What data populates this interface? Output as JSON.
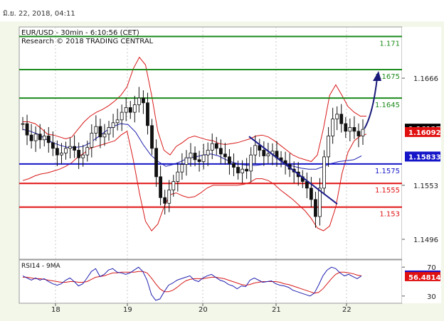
{
  "header": {
    "timestamp": "มิ.ย. 22, 2018, 04:11"
  },
  "chart_data": {
    "type": "line",
    "title": "EUR/USD - 30min - 6:10:56 (CET)",
    "subtitle": "Research © 2018 TRADING CENTRAL",
    "x_ticks": [
      "18",
      "19",
      "20",
      "21",
      "22"
    ],
    "ylim": [
      1.1475,
      1.172
    ],
    "y_ticks": [
      1.1666,
      1.1553,
      1.1496
    ],
    "levels": [
      {
        "label": "1.171",
        "value": 1.171,
        "color": "#1a8a1a"
      },
      {
        "label": "1.1675",
        "value": 1.1675,
        "color": "#1a8a1a"
      },
      {
        "label": "1.1645",
        "value": 1.1645,
        "color": "#1a8a1a"
      },
      {
        "label": "1.1575",
        "value": 1.15755,
        "color": "#1414c8"
      },
      {
        "label": "1.1555",
        "value": 1.1555,
        "color": "#e01010"
      },
      {
        "label": "1.153",
        "value": 1.153,
        "color": "#e01010"
      }
    ],
    "price_badges": [
      {
        "label": "1.16127",
        "value": 1.16127,
        "bg": "#000000"
      },
      {
        "label": "1.16092",
        "value": 1.16092,
        "bg": "#e01010"
      },
      {
        "label": "1.15833",
        "value": 1.15833,
        "bg": "#1414c8"
      }
    ],
    "price_series": {
      "name": "EUR/USD",
      "values": [
        1.1618,
        1.1606,
        1.16,
        1.1607,
        1.1601,
        1.1605,
        1.1598,
        1.1592,
        1.1585,
        1.1587,
        1.1592,
        1.1594,
        1.159,
        1.1582,
        1.1585,
        1.1593,
        1.1608,
        1.1615,
        1.1604,
        1.1607,
        1.1614,
        1.1619,
        1.1622,
        1.163,
        1.1635,
        1.163,
        1.1638,
        1.1645,
        1.164,
        1.1616,
        1.1592,
        1.1562,
        1.154,
        1.1534,
        1.1548,
        1.1557,
        1.1567,
        1.1575,
        1.1582,
        1.1587,
        1.158,
        1.1578,
        1.1585,
        1.159,
        1.1597,
        1.1592,
        1.1586,
        1.1583,
        1.1576,
        1.1572,
        1.1566,
        1.157,
        1.1568,
        1.1585,
        1.1595,
        1.159,
        1.1584,
        1.1586,
        1.1589,
        1.1582,
        1.1579,
        1.1575,
        1.157,
        1.1567,
        1.1562,
        1.1557,
        1.155,
        1.1538,
        1.152,
        1.155,
        1.1583,
        1.1605,
        1.1623,
        1.1628,
        1.1618,
        1.161,
        1.1614,
        1.161,
        1.1605,
        1.1612
      ]
    },
    "bollinger_upper": [
      1.162,
      1.162,
      1.1618,
      1.1613,
      1.1607,
      1.1606,
      1.1604,
      1.1602,
      1.1604,
      1.1612,
      1.162,
      1.1626,
      1.163,
      1.1633,
      1.1637,
      1.1642,
      1.1648,
      1.1657,
      1.1676,
      1.1688,
      1.168,
      1.1648,
      1.161,
      1.159,
      1.1585,
      1.1594,
      1.1598,
      1.1603,
      1.1605,
      1.1603,
      1.1601,
      1.16,
      1.1597,
      1.1596,
      1.1597,
      1.1598,
      1.16,
      1.1602,
      1.1605,
      1.1606,
      1.1604,
      1.16,
      1.1595,
      1.159,
      1.1585,
      1.1582,
      1.158,
      1.1578,
      1.1585,
      1.1613,
      1.1648,
      1.1659,
      1.1648,
      1.1636,
      1.163,
      1.1626,
      1.1626
    ],
    "bollinger_lower": [
      1.1558,
      1.156,
      1.1563,
      1.1565,
      1.1566,
      1.1568,
      1.157,
      1.1573,
      1.1577,
      1.1583,
      1.1587,
      1.1592,
      1.1594,
      1.1596,
      1.1598,
      1.16,
      1.1606,
      1.161,
      1.158,
      1.1545,
      1.1515,
      1.1505,
      1.1512,
      1.153,
      1.1543,
      1.1545,
      1.1542,
      1.154,
      1.1541,
      1.1545,
      1.155,
      1.1553,
      1.1553,
      1.1553,
      1.1553,
      1.1553,
      1.1554,
      1.1556,
      1.156,
      1.156,
      1.1558,
      1.1554,
      1.1548,
      1.1543,
      1.1538,
      1.1532,
      1.1526,
      1.1518,
      1.1508,
      1.1505,
      1.151,
      1.153,
      1.1565,
      1.1588,
      1.16,
      1.1605,
      1.1607
    ],
    "moving_average": [
      1.1612,
      1.161,
      1.1607,
      1.1602,
      1.1598,
      1.1595,
      1.1593,
      1.1593,
      1.1594,
      1.1598,
      1.1604,
      1.161,
      1.1615,
      1.1618,
      1.1617,
      1.1609,
      1.1596,
      1.1585,
      1.1578,
      1.1573,
      1.1575,
      1.1578,
      1.1582,
      1.1583,
      1.1585,
      1.1586,
      1.1584,
      1.158,
      1.1577,
      1.1575,
      1.1574,
      1.1574,
      1.1575,
      1.1576,
      1.1576,
      1.1575,
      1.1573,
      1.1571,
      1.157,
      1.157,
      1.1573,
      1.1576,
      1.1578,
      1.1579,
      1.158,
      1.1584
    ],
    "trendline": {
      "from": [
        1.1597,
        1.1597
      ],
      "to": [
        1.154,
        1.154
      ]
    },
    "forecast_arrow": {
      "from_value": 1.16127,
      "to_value": 1.1675
    },
    "rsi": {
      "label": "RSI14 - 9MA",
      "ylim": [
        20,
        80
      ],
      "y_ticks": [
        70,
        30
      ],
      "badges": [
        {
          "label": "58.4384",
          "value": 58.4384,
          "bg": "#1414c8"
        },
        {
          "label": "56.4814",
          "value": 56.4814,
          "bg": "#e01010"
        }
      ],
      "rsi_values": [
        58,
        55,
        52,
        55,
        52,
        54,
        50,
        47,
        45,
        47,
        52,
        55,
        50,
        44,
        47,
        55,
        64,
        68,
        57,
        60,
        66,
        68,
        63,
        62,
        60,
        62,
        66,
        70,
        64,
        52,
        32,
        24,
        26,
        36,
        45,
        48,
        52,
        54,
        56,
        58,
        52,
        50,
        55,
        58,
        60,
        56,
        52,
        50,
        46,
        44,
        40,
        44,
        43,
        52,
        55,
        52,
        49,
        50,
        51,
        47,
        45,
        44,
        42,
        38,
        36,
        34,
        32,
        30,
        34,
        45,
        58,
        66,
        70,
        68,
        62,
        58,
        60,
        57,
        54,
        58
      ],
      "ma_values": [
        56,
        56,
        55,
        54,
        54,
        53,
        52,
        51,
        50,
        49,
        49,
        50,
        50,
        49,
        49,
        50,
        53,
        56,
        57,
        58,
        60,
        62,
        62,
        63,
        63,
        63,
        63,
        64,
        64,
        62,
        55,
        47,
        40,
        36,
        36,
        38,
        42,
        47,
        51,
        53,
        54,
        54,
        54,
        55,
        56,
        56,
        55,
        54,
        52,
        50,
        48,
        46,
        45,
        46,
        48,
        49,
        50,
        50,
        50,
        50,
        49,
        47,
        46,
        44,
        42,
        40,
        38,
        36,
        34,
        35,
        40,
        47,
        54,
        60,
        63,
        63,
        62,
        61,
        59,
        58
      ]
    }
  }
}
